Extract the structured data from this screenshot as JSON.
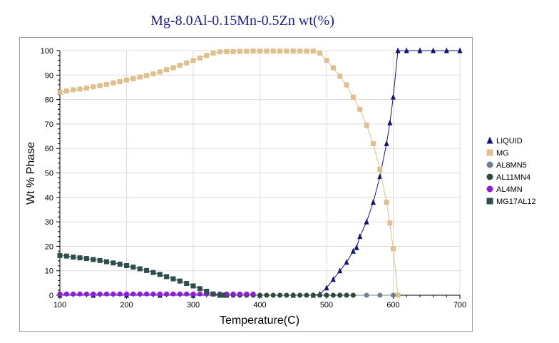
{
  "chart_data": {
    "type": "line",
    "title": "Mg-8.0Al-0.15Mn-0.5Zn wt(%)",
    "xlabel": "Temperature(C)",
    "ylabel": "Wt % Phase",
    "xlim": [
      100,
      700
    ],
    "ylim": [
      0,
      100
    ],
    "xticks": [
      "100",
      "200",
      "300",
      "400",
      "500",
      "600",
      "700"
    ],
    "yticks": [
      "0",
      "10",
      "20",
      "30",
      "40",
      "50",
      "60",
      "70",
      "80",
      "90",
      "100"
    ],
    "grid": true,
    "legend_position": "right",
    "series": [
      {
        "name": "LIQUID",
        "color": "#13137a",
        "marker": "triangle",
        "line": true,
        "points": [
          [
            100,
            0
          ],
          [
            150,
            0
          ],
          [
            200,
            0
          ],
          [
            250,
            0
          ],
          [
            300,
            0
          ],
          [
            350,
            0
          ],
          [
            400,
            0
          ],
          [
            450,
            0
          ],
          [
            480,
            0
          ],
          [
            490,
            0.5
          ],
          [
            500,
            3
          ],
          [
            510,
            6.5
          ],
          [
            520,
            10
          ],
          [
            530,
            13.5
          ],
          [
            540,
            18
          ],
          [
            545,
            19.5
          ],
          [
            550,
            24
          ],
          [
            560,
            30
          ],
          [
            570,
            38
          ],
          [
            580,
            48.5
          ],
          [
            590,
            62
          ],
          [
            595,
            70.5
          ],
          [
            600,
            81
          ],
          [
            607,
            100
          ],
          [
            620,
            100
          ],
          [
            640,
            100
          ],
          [
            660,
            100
          ],
          [
            680,
            100
          ],
          [
            700,
            100
          ]
        ]
      },
      {
        "name": "MG",
        "color": "#e0bf8c",
        "marker": "square",
        "line": true,
        "points": [
          [
            100,
            83
          ],
          [
            110,
            83.5
          ],
          [
            120,
            84
          ],
          [
            130,
            84.3
          ],
          [
            140,
            84.7
          ],
          [
            150,
            85.2
          ],
          [
            160,
            85.7
          ],
          [
            170,
            86.2
          ],
          [
            180,
            86.8
          ],
          [
            190,
            87.3
          ],
          [
            200,
            88
          ],
          [
            210,
            88.5
          ],
          [
            220,
            89.2
          ],
          [
            230,
            89.8
          ],
          [
            240,
            90.5
          ],
          [
            250,
            91.3
          ],
          [
            260,
            92.2
          ],
          [
            270,
            93
          ],
          [
            280,
            94
          ],
          [
            290,
            95
          ],
          [
            300,
            96
          ],
          [
            310,
            97
          ],
          [
            320,
            98
          ],
          [
            330,
            99
          ],
          [
            340,
            99.5
          ],
          [
            350,
            99.6
          ],
          [
            360,
            99.6
          ],
          [
            370,
            99.7
          ],
          [
            380,
            99.7
          ],
          [
            390,
            99.8
          ],
          [
            400,
            99.8
          ],
          [
            410,
            99.8
          ],
          [
            420,
            99.8
          ],
          [
            430,
            99.8
          ],
          [
            440,
            99.8
          ],
          [
            450,
            99.8
          ],
          [
            460,
            99.8
          ],
          [
            470,
            99.8
          ],
          [
            480,
            99.8
          ],
          [
            490,
            99
          ],
          [
            500,
            96
          ],
          [
            510,
            93
          ],
          [
            520,
            89.5
          ],
          [
            530,
            86
          ],
          [
            540,
            81
          ],
          [
            550,
            76
          ],
          [
            560,
            69.5
          ],
          [
            570,
            62
          ],
          [
            580,
            51.5
          ],
          [
            590,
            38
          ],
          [
            595,
            29.5
          ],
          [
            600,
            19
          ],
          [
            607,
            0
          ]
        ]
      },
      {
        "name": "AL8MN5",
        "color": "#708090",
        "marker": "circle",
        "line": true,
        "points": [
          [
            500,
            0
          ],
          [
            520,
            0
          ],
          [
            540,
            0
          ],
          [
            560,
            0
          ],
          [
            580,
            0
          ],
          [
            600,
            0
          ]
        ]
      },
      {
        "name": "AL11MN4",
        "color": "#2d4a3e",
        "marker": "circle",
        "line": true,
        "points": [
          [
            350,
            0
          ],
          [
            360,
            0
          ],
          [
            370,
            0
          ],
          [
            380,
            0
          ],
          [
            390,
            0
          ],
          [
            400,
            0
          ],
          [
            410,
            0
          ],
          [
            420,
            0
          ],
          [
            430,
            0
          ],
          [
            440,
            0
          ],
          [
            450,
            0
          ],
          [
            460,
            0
          ],
          [
            470,
            0
          ],
          [
            480,
            0
          ],
          [
            490,
            0
          ],
          [
            500,
            0
          ],
          [
            510,
            0
          ],
          [
            520,
            0
          ],
          [
            530,
            0
          ],
          [
            540,
            0
          ]
        ]
      },
      {
        "name": "AL4MN",
        "color": "#8b1ed6",
        "marker": "circle",
        "line": true,
        "points": [
          [
            100,
            0.5
          ],
          [
            110,
            0.5
          ],
          [
            120,
            0.5
          ],
          [
            130,
            0.5
          ],
          [
            140,
            0.5
          ],
          [
            150,
            0.5
          ],
          [
            160,
            0.5
          ],
          [
            170,
            0.5
          ],
          [
            180,
            0.5
          ],
          [
            190,
            0.5
          ],
          [
            200,
            0.5
          ],
          [
            210,
            0.5
          ],
          [
            220,
            0.5
          ],
          [
            230,
            0.5
          ],
          [
            240,
            0.5
          ],
          [
            250,
            0.5
          ],
          [
            260,
            0.5
          ],
          [
            270,
            0.5
          ],
          [
            280,
            0.5
          ],
          [
            290,
            0.5
          ],
          [
            300,
            0.5
          ],
          [
            310,
            0.5
          ],
          [
            320,
            0.5
          ],
          [
            330,
            0.5
          ],
          [
            340,
            0.5
          ],
          [
            350,
            0.5
          ],
          [
            360,
            0.5
          ],
          [
            370,
            0.5
          ],
          [
            380,
            0.5
          ],
          [
            390,
            0.5
          ]
        ]
      },
      {
        "name": "MG17AL12",
        "color": "#2f4f4f",
        "marker": "square",
        "line": true,
        "points": [
          [
            100,
            16.2
          ],
          [
            110,
            16
          ],
          [
            120,
            15.6
          ],
          [
            130,
            15.3
          ],
          [
            140,
            15
          ],
          [
            150,
            14.6
          ],
          [
            160,
            14.2
          ],
          [
            170,
            13.7
          ],
          [
            180,
            13.2
          ],
          [
            190,
            12.7
          ],
          [
            200,
            12.1
          ],
          [
            210,
            11.5
          ],
          [
            220,
            10.8
          ],
          [
            230,
            10.1
          ],
          [
            240,
            9.3
          ],
          [
            250,
            8.5
          ],
          [
            260,
            7.6
          ],
          [
            270,
            6.7
          ],
          [
            280,
            5.8
          ],
          [
            290,
            4.8
          ],
          [
            300,
            3.8
          ],
          [
            310,
            2.7
          ],
          [
            320,
            1.6
          ],
          [
            330,
            0.5
          ],
          [
            340,
            0
          ],
          [
            345,
            0
          ]
        ]
      }
    ]
  }
}
